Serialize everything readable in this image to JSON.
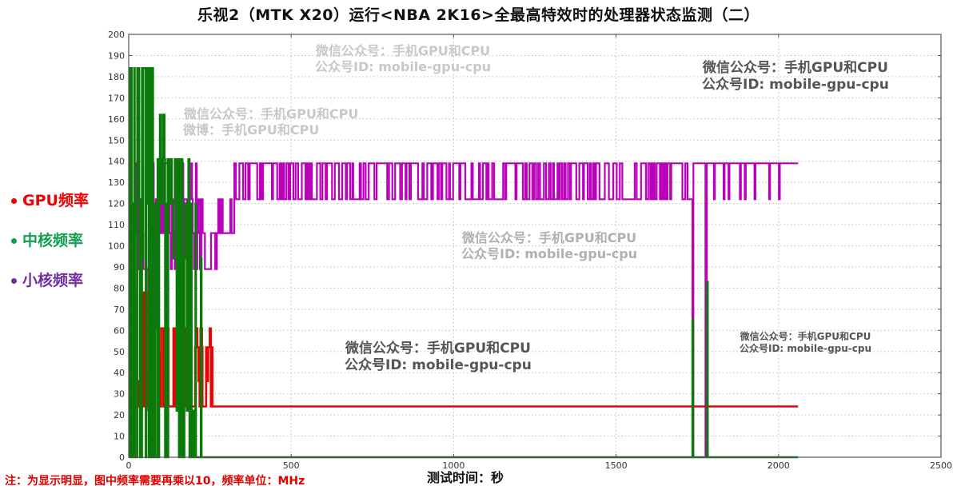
{
  "title": "乐视2（MTK X20）运行<NBA 2K16>全最高特效时的处理器状态监测（二）",
  "legend": [
    {
      "label": "GPU频率",
      "color": "#ee0000",
      "dot": "#ee0000"
    },
    {
      "label": "中核频率",
      "color": "#10a050",
      "dot": "#10a050"
    },
    {
      "label": "小核频率",
      "color": "#7030a0",
      "dot": "#7030a0"
    }
  ],
  "note": "注：为显示明显，图中频率需要再乘以10，频率单位：MHz",
  "xlabel": "测试时间：秒",
  "watermarks": [
    {
      "line1": "微信公众号：手机GPU和CPU",
      "line2": "公众号ID: mobile-gpu-cpu"
    },
    {
      "line1": "微信公众号：手机GPU和CPU",
      "line2": "微博：手机GPU和CPU"
    },
    {
      "line1": "微信公众号：手机GPU和CPU",
      "line2": "公众号ID: mobile-gpu-cpu"
    },
    {
      "line1": "微信公众号：手机GPU和CPU",
      "line2": "公众号ID: mobile-gpu-cpu"
    },
    {
      "line1": "微信公众号：手机GPU和CPU",
      "line2": "公众号ID: mobile-gpu-cpu"
    },
    {
      "line1": "微信公众号：手机GPU和CPU",
      "line2": "公众号ID: mobile-gpu-cpu"
    }
  ],
  "chart_data": {
    "type": "line",
    "title": "乐视2（MTK X20）运行<NBA 2K16>全最高特效时的处理器状态监测（二）",
    "xlabel": "测试时间：秒",
    "ylabel": "",
    "xlim": [
      0,
      2500
    ],
    "ylim": [
      0,
      200
    ],
    "xticks": [
      0,
      500,
      1000,
      1500,
      2000,
      2500
    ],
    "yticks": [
      0,
      10,
      20,
      30,
      40,
      50,
      60,
      70,
      80,
      90,
      100,
      110,
      120,
      130,
      140,
      150,
      160,
      170,
      180,
      190,
      200
    ],
    "grid": true,
    "legend_position": "left-outside",
    "note": "frequencies shown ÷10; unit MHz",
    "series": [
      {
        "name": "GPU频率",
        "color": "#ee0000",
        "description": "Fluctuates 24–78 during first ~250s, then steady at 24 until ~2060s",
        "levels": [
          24,
          36,
          49,
          52,
          61,
          78
        ],
        "points": [
          [
            0,
            78
          ],
          [
            10,
            24
          ],
          [
            20,
            36
          ],
          [
            30,
            24
          ],
          [
            60,
            78
          ],
          [
            70,
            78
          ],
          [
            80,
            61
          ],
          [
            90,
            49
          ],
          [
            100,
            24
          ],
          [
            170,
            61
          ],
          [
            180,
            36
          ],
          [
            190,
            61
          ],
          [
            200,
            24
          ],
          [
            210,
            52
          ],
          [
            220,
            24
          ],
          [
            230,
            52
          ],
          [
            240,
            36
          ],
          [
            250,
            52
          ],
          [
            260,
            24
          ],
          [
            2060,
            24
          ]
        ]
      },
      {
        "name": "中核频率",
        "color": "#0a7a0a",
        "description": "Dense oscillation 0–184 during first ~220s, then 0; spikes at ~1735s (~65) and ~1780s (~83)",
        "levels": [
          0,
          22,
          94,
          120,
          141,
          162,
          184
        ],
        "points": [
          [
            0,
            184
          ],
          [
            20,
            0
          ],
          [
            30,
            184
          ],
          [
            40,
            0
          ],
          [
            50,
            184
          ],
          [
            60,
            0
          ],
          [
            70,
            184
          ],
          [
            80,
            0
          ],
          [
            90,
            184
          ],
          [
            100,
            94
          ],
          [
            110,
            141
          ],
          [
            120,
            0
          ],
          [
            130,
            120
          ],
          [
            140,
            0
          ],
          [
            150,
            162
          ],
          [
            160,
            0
          ],
          [
            170,
            141
          ],
          [
            180,
            22
          ],
          [
            190,
            141
          ],
          [
            200,
            0
          ],
          [
            210,
            120
          ],
          [
            220,
            0
          ],
          [
            1735,
            0
          ],
          [
            1735,
            65
          ],
          [
            1737,
            0
          ],
          [
            1780,
            0
          ],
          [
            1780,
            83
          ],
          [
            1782,
            0
          ],
          [
            2060,
            0
          ]
        ]
      },
      {
        "name": "小核频率",
        "color": "#bb00bb",
        "description": "Oscillates 22–139 until ~320s, then alternating 122/139 until ~1730s, dips to 0 at ~1735s and ~1775s, 139 mostly until 2060s",
        "levels": [
          22,
          89,
          106,
          122,
          139
        ],
        "points": [
          [
            0,
            106
          ],
          [
            20,
            139
          ],
          [
            30,
            89
          ],
          [
            60,
            22
          ],
          [
            80,
            139
          ],
          [
            100,
            122
          ],
          [
            140,
            89
          ],
          [
            200,
            122
          ],
          [
            230,
            62
          ],
          [
            250,
            106
          ],
          [
            280,
            106
          ],
          [
            300,
            89
          ],
          [
            320,
            139
          ],
          [
            330,
            122
          ],
          [
            1730,
            122
          ],
          [
            1735,
            0
          ],
          [
            1740,
            139
          ],
          [
            1770,
            139
          ],
          [
            1775,
            0
          ],
          [
            1780,
            139
          ],
          [
            2060,
            139
          ]
        ]
      }
    ]
  }
}
